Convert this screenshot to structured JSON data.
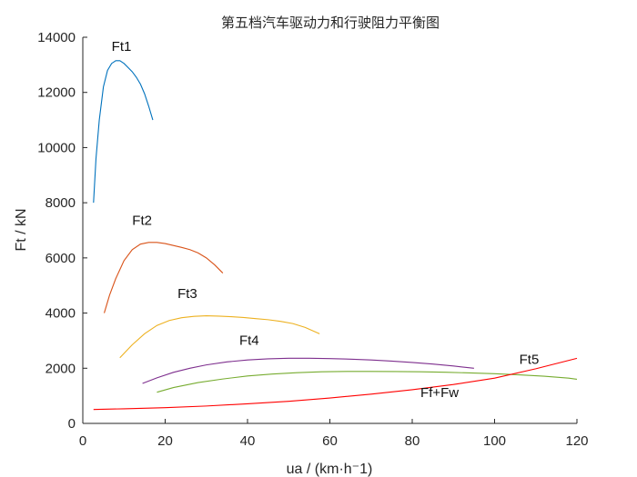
{
  "chart_data": {
    "type": "line",
    "title": "第五档汽车驱动力和行驶阻力平衡图",
    "xlabel": "ua / (km·h⁻1)",
    "ylabel": "Ft / kN",
    "xlim": [
      0,
      120
    ],
    "ylim": [
      0,
      14000
    ],
    "x_ticks": [
      0,
      20,
      40,
      60,
      80,
      100,
      120
    ],
    "y_ticks": [
      0,
      2000,
      4000,
      6000,
      8000,
      10000,
      12000,
      14000
    ],
    "grid": false,
    "series": [
      {
        "name": "Ft1",
        "color": "#0072BD",
        "x": [
          2.6,
          3.2,
          4.0,
          5.0,
          6.0,
          7.0,
          8.0,
          9.0,
          10.0,
          11.0,
          12.0,
          13.0,
          14.0,
          15.0,
          16.0,
          17.0
        ],
        "y": [
          8000,
          9600,
          11000,
          12200,
          12800,
          13050,
          13150,
          13150,
          13050,
          12900,
          12750,
          12550,
          12300,
          11950,
          11500,
          11000
        ]
      },
      {
        "name": "Ft2",
        "color": "#D95319",
        "x": [
          5.2,
          6.5,
          8.0,
          10.0,
          12.0,
          14.0,
          16.0,
          18.0,
          20.0,
          22.0,
          24.0,
          26.0,
          28.0,
          30.0,
          32.0,
          34.0
        ],
        "y": [
          4000,
          4650,
          5250,
          5900,
          6300,
          6500,
          6560,
          6560,
          6520,
          6450,
          6380,
          6300,
          6180,
          6000,
          5750,
          5450
        ]
      },
      {
        "name": "Ft3",
        "color": "#EDB120",
        "x": [
          9.0,
          12.0,
          15.0,
          18.0,
          21.0,
          24.0,
          27.0,
          30.0,
          33.0,
          36.0,
          39.0,
          42.0,
          45.0,
          48.0,
          51.0,
          54.0,
          57.5
        ],
        "y": [
          2380,
          2850,
          3250,
          3550,
          3730,
          3830,
          3880,
          3900,
          3890,
          3870,
          3840,
          3800,
          3760,
          3700,
          3620,
          3480,
          3250
        ]
      },
      {
        "name": "Ft4",
        "color": "#7E2F8E",
        "x": [
          14.5,
          18.0,
          22.0,
          26.0,
          30.0,
          35.0,
          40.0,
          45.0,
          50.0,
          55.0,
          60.0,
          65.0,
          70.0,
          75.0,
          80.0,
          85.0,
          90.0,
          95.0
        ],
        "y": [
          1450,
          1650,
          1850,
          2000,
          2120,
          2230,
          2300,
          2340,
          2360,
          2360,
          2350,
          2330,
          2300,
          2260,
          2210,
          2150,
          2080,
          2000
        ]
      },
      {
        "name": "Ft5",
        "color": "#77AC30",
        "x": [
          18.0,
          22.0,
          28.0,
          34.0,
          40.0,
          46.0,
          52.0,
          58.0,
          64.0,
          70.0,
          76.0,
          82.0,
          88.0,
          94.0,
          100.0,
          106.0,
          112.0,
          118.0,
          120.0
        ],
        "y": [
          1130,
          1300,
          1480,
          1610,
          1720,
          1790,
          1840,
          1870,
          1885,
          1885,
          1880,
          1870,
          1855,
          1830,
          1800,
          1760,
          1710,
          1640,
          1600
        ]
      },
      {
        "name": "Ff+Fw",
        "color": "#FF0000",
        "x": [
          2.6,
          10,
          20,
          30,
          40,
          50,
          60,
          70,
          80,
          90,
          100,
          110,
          120
        ],
        "y": [
          505,
          530,
          570,
          630,
          710,
          800,
          920,
          1060,
          1220,
          1410,
          1640,
          1980,
          2360
        ]
      }
    ],
    "annotations": [
      {
        "text": "Ft1",
        "x": 7.0,
        "y": 13500
      },
      {
        "text": "Ft2",
        "x": 12.0,
        "y": 7200
      },
      {
        "text": "Ft3",
        "x": 23.0,
        "y": 4550
      },
      {
        "text": "Ft4",
        "x": 38.0,
        "y": 2850
      },
      {
        "text": "Ft5",
        "x": 106.0,
        "y": 2150
      },
      {
        "text": "Ff+Fw",
        "x": 82.0,
        "y": 950
      }
    ]
  }
}
